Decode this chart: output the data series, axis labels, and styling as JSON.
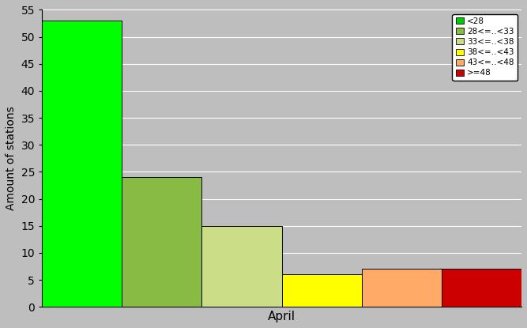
{
  "bars": [
    {
      "value": 53,
      "color": "#00ff00",
      "label": "<28"
    },
    {
      "value": 24,
      "color": "#88bb44",
      "label": "28<=..<33"
    },
    {
      "value": 15,
      "color": "#ccdd88",
      "label": "33<=..<38"
    },
    {
      "value": 6,
      "color": "#ffff00",
      "label": "38<=..<43"
    },
    {
      "value": 7,
      "color": "#ffaa66",
      "label": "43<=..<48"
    },
    {
      "value": 7,
      "color": "#cc0000",
      "label": ">=48"
    }
  ],
  "legend_colors": [
    "#00cc00",
    "#88bb44",
    "#ccdd88",
    "#ffff00",
    "#ffaa66",
    "#cc0000"
  ],
  "xlabel": "April",
  "ylabel": "Amount of stations",
  "ylim": [
    0,
    55
  ],
  "yticks": [
    0,
    5,
    10,
    15,
    20,
    25,
    30,
    35,
    40,
    45,
    50,
    55
  ],
  "background_color": "#bebebe",
  "figsize": [
    6.67,
    4.15
  ],
  "dpi": 100
}
